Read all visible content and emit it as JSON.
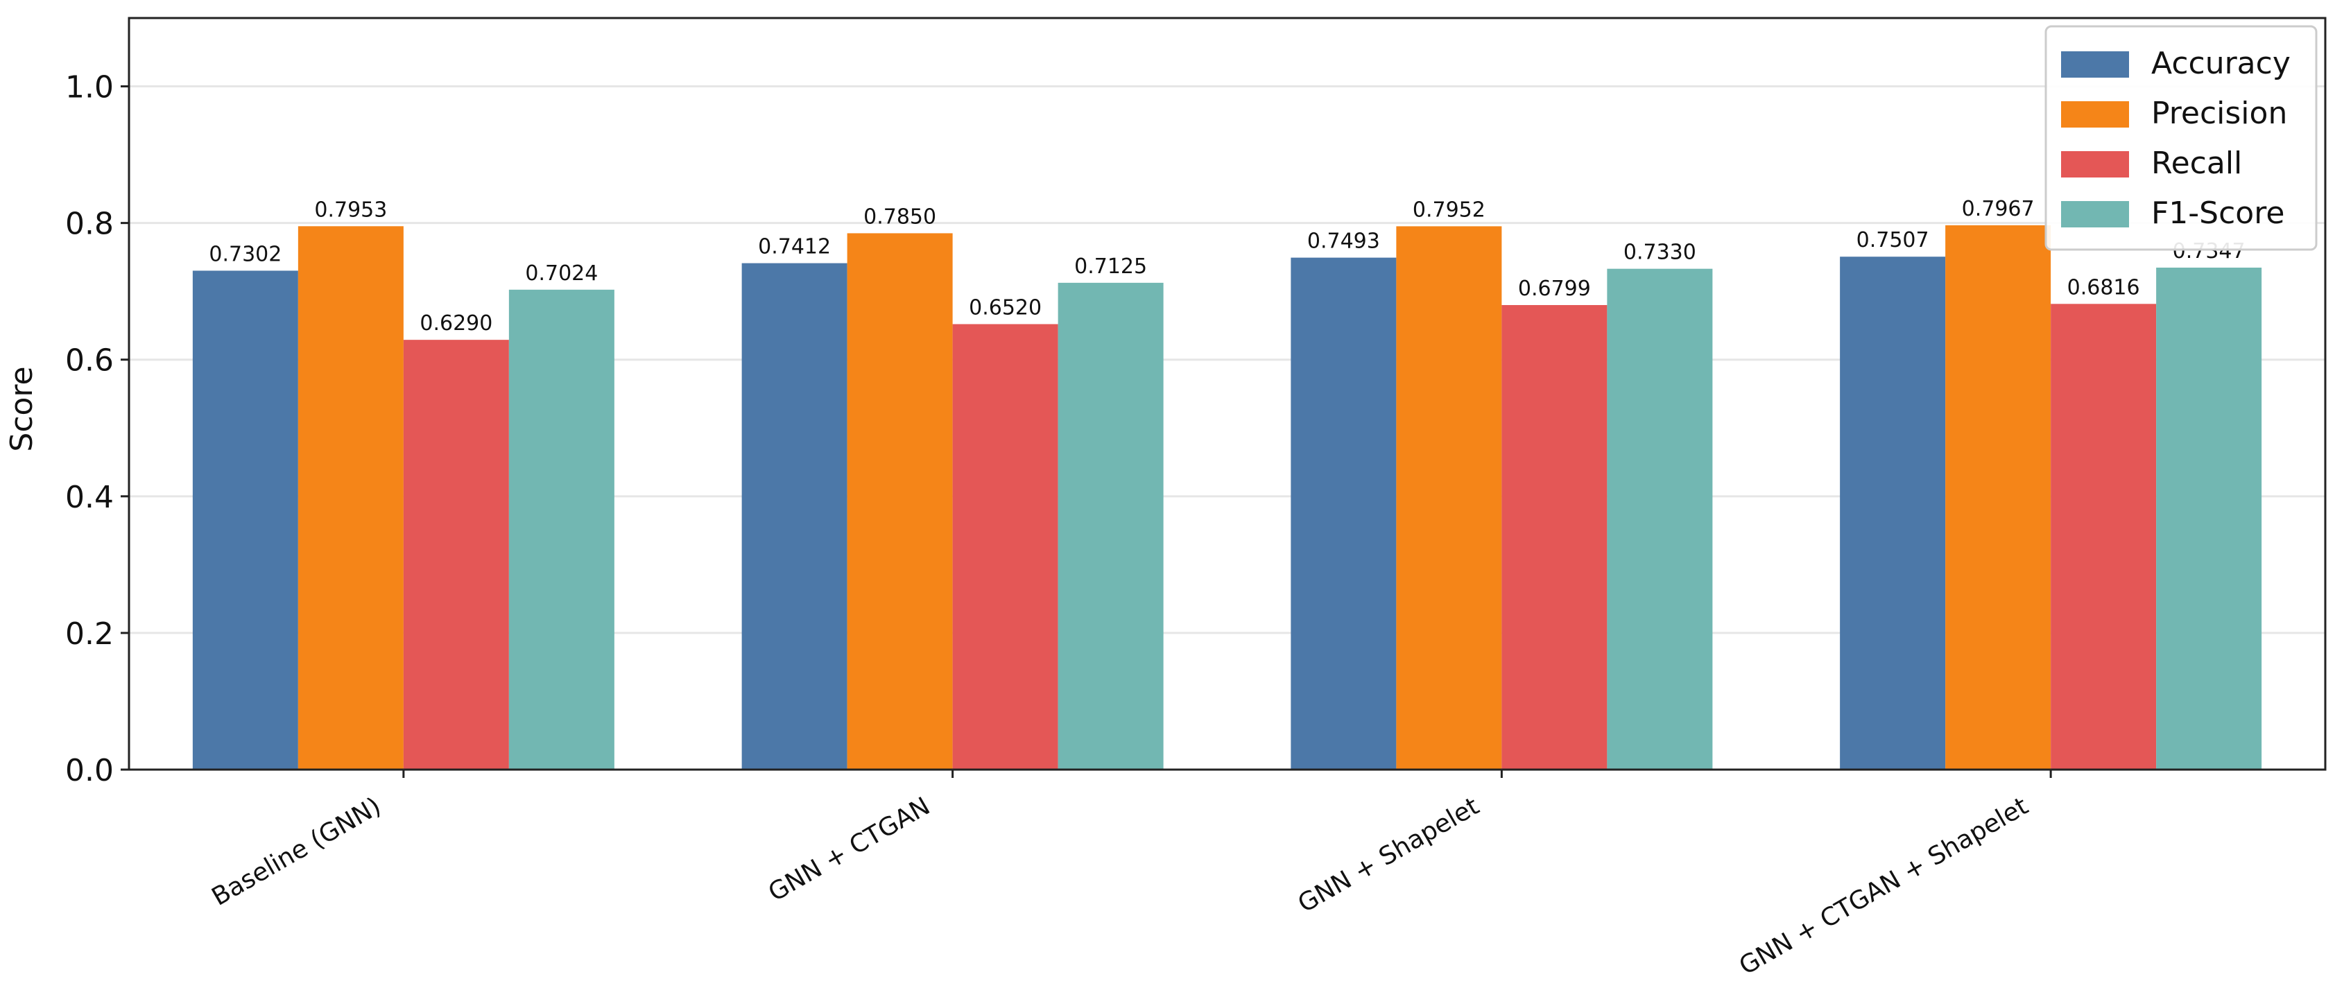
{
  "chart_data": {
    "type": "bar",
    "title": "",
    "xlabel": "",
    "ylabel": "Score",
    "ylim": [
      0,
      1.1
    ],
    "yticks": [
      "0.0",
      "0.2",
      "0.4",
      "0.6",
      "0.8",
      "1.0"
    ],
    "grid": "horizontal",
    "legend_position": "top-right",
    "categories": [
      "Baseline (GNN)",
      "GNN + CTGAN",
      "GNN + Shapelet",
      "GNN + CTGAN + Shapelet"
    ],
    "series": [
      {
        "name": "Accuracy",
        "color": "#4c78a8",
        "values": [
          0.7302,
          0.7412,
          0.7493,
          0.7507
        ],
        "labels": [
          "0.7302",
          "0.7412",
          "0.7493",
          "0.7507"
        ]
      },
      {
        "name": "Precision",
        "color": "#f58518",
        "values": [
          0.7953,
          0.785,
          0.7952,
          0.7967
        ],
        "labels": [
          "0.7953",
          "0.7850",
          "0.7952",
          "0.7967"
        ]
      },
      {
        "name": "Recall",
        "color": "#e45756",
        "values": [
          0.629,
          0.652,
          0.6799,
          0.6816
        ],
        "labels": [
          "0.6290",
          "0.6520",
          "0.6799",
          "0.6816"
        ]
      },
      {
        "name": "F1-Score",
        "color": "#72b7b2",
        "values": [
          0.7024,
          0.7125,
          0.733,
          0.7347
        ],
        "labels": [
          "0.7024",
          "0.7125",
          "0.7330",
          "0.7347"
        ]
      }
    ]
  }
}
